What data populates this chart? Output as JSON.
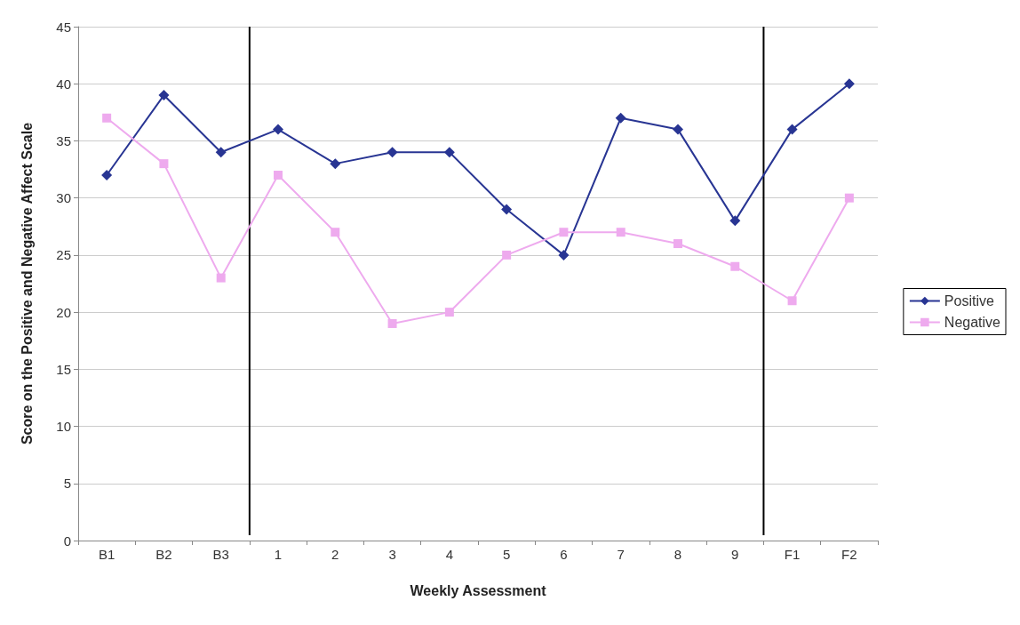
{
  "chart_data": {
    "type": "line",
    "xlabel": "Weekly Assessment",
    "ylabel": "Score on the Positive and Negative Affect Scale",
    "categories": [
      "B1",
      "B2",
      "B3",
      "1",
      "2",
      "3",
      "4",
      "5",
      "6",
      "7",
      "8",
      "9",
      "F1",
      "F2"
    ],
    "series": [
      {
        "name": "Positive",
        "color": "#283593",
        "marker": "diamond",
        "values": [
          32,
          39,
          34,
          36,
          33,
          34,
          34,
          29,
          25,
          37,
          36,
          28,
          36,
          40
        ]
      },
      {
        "name": "Negative",
        "color": "#eeaaee",
        "marker": "square",
        "values": [
          37,
          33,
          23,
          32,
          27,
          19,
          20,
          25,
          27,
          27,
          26,
          24,
          21,
          30
        ]
      }
    ],
    "ylim": [
      0,
      45
    ],
    "yticks": [
      0,
      5,
      10,
      15,
      20,
      25,
      30,
      35,
      40,
      45
    ],
    "grid": "y",
    "legend": "right",
    "line_style": "solid"
  }
}
